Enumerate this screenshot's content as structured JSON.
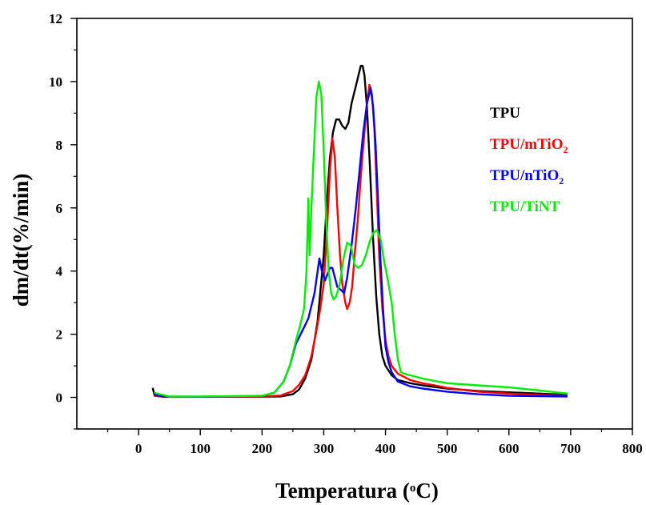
{
  "chart_data": {
    "type": "line",
    "xlabel_main": "Temperatura (",
    "xlabel_sup": "o",
    "xlabel_end": "C)",
    "ylabel": "dm/dt(%/min)",
    "xlim": [
      -100,
      800
    ],
    "ylim": [
      -1,
      12
    ],
    "xticks": [
      "0",
      "100",
      "200",
      "300",
      "400",
      "500",
      "600",
      "700",
      "800"
    ],
    "yticks": [
      "0",
      "2",
      "4",
      "6",
      "8",
      "10",
      "12"
    ],
    "legend_position": "top-right",
    "series": [
      {
        "name": "TPU",
        "color": "#000000",
        "legend_main": "TPU",
        "legend_sub": "",
        "points": [
          [
            23,
            0.3
          ],
          [
            26,
            0.05
          ],
          [
            40,
            0.02
          ],
          [
            100,
            0.02
          ],
          [
            200,
            0.02
          ],
          [
            230,
            0.03
          ],
          [
            250,
            0.1
          ],
          [
            260,
            0.25
          ],
          [
            270,
            0.6
          ],
          [
            280,
            1.2
          ],
          [
            290,
            2.4
          ],
          [
            300,
            4.5
          ],
          [
            305,
            6.2
          ],
          [
            310,
            7.6
          ],
          [
            315,
            8.4
          ],
          [
            320,
            8.8
          ],
          [
            325,
            8.8
          ],
          [
            330,
            8.6
          ],
          [
            335,
            8.5
          ],
          [
            340,
            8.7
          ],
          [
            345,
            9.3
          ],
          [
            350,
            9.7
          ],
          [
            355,
            10.1
          ],
          [
            360,
            10.5
          ],
          [
            363,
            10.5
          ],
          [
            366,
            10.2
          ],
          [
            370,
            9.2
          ],
          [
            375,
            7.2
          ],
          [
            380,
            5.0
          ],
          [
            385,
            3.2
          ],
          [
            390,
            2.0
          ],
          [
            395,
            1.3
          ],
          [
            400,
            1.0
          ],
          [
            410,
            0.7
          ],
          [
            420,
            0.55
          ],
          [
            440,
            0.45
          ],
          [
            460,
            0.38
          ],
          [
            480,
            0.33
          ],
          [
            500,
            0.28
          ],
          [
            550,
            0.2
          ],
          [
            600,
            0.16
          ],
          [
            650,
            0.12
          ],
          [
            695,
            0.08
          ]
        ]
      },
      {
        "name": "TPU/mTiO2",
        "color": "#ff0000",
        "legend_main": "TPU/mTiO",
        "legend_sub": "2",
        "points": [
          [
            25,
            0.05
          ],
          [
            40,
            0.02
          ],
          [
            100,
            0.02
          ],
          [
            200,
            0.03
          ],
          [
            230,
            0.06
          ],
          [
            250,
            0.2
          ],
          [
            260,
            0.4
          ],
          [
            270,
            0.7
          ],
          [
            280,
            1.3
          ],
          [
            290,
            2.3
          ],
          [
            295,
            2.9
          ],
          [
            300,
            3.6
          ],
          [
            305,
            5.2
          ],
          [
            310,
            7.2
          ],
          [
            314,
            8.2
          ],
          [
            318,
            7.6
          ],
          [
            322,
            6.0
          ],
          [
            326,
            4.6
          ],
          [
            330,
            3.6
          ],
          [
            335,
            3.0
          ],
          [
            338,
            2.8
          ],
          [
            342,
            3.0
          ],
          [
            346,
            3.5
          ],
          [
            350,
            4.5
          ],
          [
            355,
            5.6
          ],
          [
            360,
            7.0
          ],
          [
            365,
            8.2
          ],
          [
            370,
            9.3
          ],
          [
            374,
            9.9
          ],
          [
            378,
            9.6
          ],
          [
            382,
            8.5
          ],
          [
            386,
            6.5
          ],
          [
            390,
            4.4
          ],
          [
            395,
            2.8
          ],
          [
            400,
            1.8
          ],
          [
            405,
            1.3
          ],
          [
            410,
            1.0
          ],
          [
            420,
            0.75
          ],
          [
            440,
            0.55
          ],
          [
            460,
            0.45
          ],
          [
            480,
            0.38
          ],
          [
            500,
            0.3
          ],
          [
            550,
            0.18
          ],
          [
            600,
            0.12
          ],
          [
            650,
            0.08
          ],
          [
            695,
            0.05
          ]
        ]
      },
      {
        "name": "TPU/nTiO2",
        "color": "#0000ff",
        "legend_main": "TPU/nTiO",
        "legend_sub": "2",
        "points": [
          [
            25,
            0.1
          ],
          [
            40,
            0.03
          ],
          [
            100,
            0.02
          ],
          [
            200,
            0.05
          ],
          [
            220,
            0.15
          ],
          [
            235,
            0.5
          ],
          [
            245,
            1.0
          ],
          [
            255,
            1.7
          ],
          [
            265,
            2.1
          ],
          [
            275,
            2.5
          ],
          [
            285,
            3.3
          ],
          [
            293,
            4.4
          ],
          [
            297,
            4.0
          ],
          [
            302,
            3.7
          ],
          [
            306,
            3.9
          ],
          [
            310,
            4.1
          ],
          [
            314,
            4.1
          ],
          [
            318,
            3.8
          ],
          [
            322,
            3.5
          ],
          [
            328,
            3.4
          ],
          [
            333,
            3.3
          ],
          [
            338,
            3.8
          ],
          [
            345,
            4.8
          ],
          [
            352,
            6.0
          ],
          [
            358,
            7.2
          ],
          [
            364,
            8.4
          ],
          [
            370,
            9.3
          ],
          [
            376,
            9.8
          ],
          [
            380,
            9.2
          ],
          [
            384,
            8.0
          ],
          [
            388,
            6.2
          ],
          [
            392,
            4.3
          ],
          [
            396,
            2.8
          ],
          [
            400,
            1.6
          ],
          [
            405,
            1.1
          ],
          [
            410,
            0.8
          ],
          [
            420,
            0.5
          ],
          [
            440,
            0.35
          ],
          [
            460,
            0.28
          ],
          [
            500,
            0.18
          ],
          [
            550,
            0.1
          ],
          [
            600,
            0.05
          ],
          [
            650,
            0.04
          ],
          [
            695,
            0.03
          ]
        ]
      },
      {
        "name": "TPU/TiNT",
        "color": "#00ee00",
        "legend_main": "TPU/TiNT",
        "legend_sub": "",
        "points": [
          [
            25,
            0.15
          ],
          [
            35,
            0.1
          ],
          [
            50,
            0.03
          ],
          [
            100,
            0.03
          ],
          [
            200,
            0.05
          ],
          [
            220,
            0.15
          ],
          [
            235,
            0.5
          ],
          [
            245,
            1.0
          ],
          [
            255,
            1.8
          ],
          [
            262,
            2.3
          ],
          [
            268,
            2.8
          ],
          [
            272,
            4.0
          ],
          [
            275,
            6.3
          ],
          [
            277,
            4.5
          ],
          [
            280,
            6.0
          ],
          [
            284,
            7.8
          ],
          [
            288,
            9.5
          ],
          [
            292,
            10.0
          ],
          [
            296,
            9.6
          ],
          [
            300,
            7.8
          ],
          [
            304,
            5.6
          ],
          [
            308,
            4.0
          ],
          [
            312,
            3.3
          ],
          [
            316,
            3.1
          ],
          [
            320,
            3.2
          ],
          [
            326,
            3.6
          ],
          [
            332,
            4.4
          ],
          [
            338,
            4.9
          ],
          [
            344,
            4.8
          ],
          [
            350,
            4.2
          ],
          [
            356,
            4.1
          ],
          [
            362,
            4.2
          ],
          [
            368,
            4.5
          ],
          [
            374,
            4.9
          ],
          [
            380,
            5.2
          ],
          [
            386,
            5.3
          ],
          [
            392,
            5.0
          ],
          [
            398,
            4.3
          ],
          [
            404,
            3.7
          ],
          [
            410,
            3.0
          ],
          [
            415,
            2.0
          ],
          [
            420,
            1.2
          ],
          [
            425,
            0.8
          ],
          [
            430,
            0.75
          ],
          [
            440,
            0.7
          ],
          [
            460,
            0.6
          ],
          [
            480,
            0.52
          ],
          [
            500,
            0.45
          ],
          [
            550,
            0.38
          ],
          [
            600,
            0.32
          ],
          [
            650,
            0.22
          ],
          [
            695,
            0.12
          ]
        ]
      }
    ]
  }
}
